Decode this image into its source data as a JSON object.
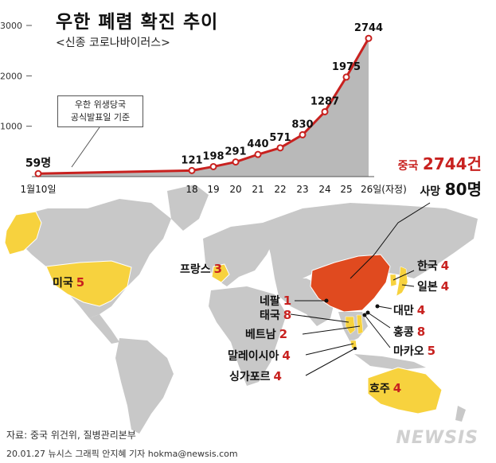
{
  "title": "우한 폐렴 확진 추이",
  "subtitle": "<신종 코로나바이러스>",
  "callout": {
    "line1": "우한 위생당국",
    "line2": "공식발표일 기준"
  },
  "china_total": {
    "label": "중국",
    "value": "2744건"
  },
  "deaths": {
    "label": "사망",
    "value": "80명"
  },
  "countries": [
    {
      "name": "미국",
      "count": "5"
    },
    {
      "name": "프랑스",
      "count": "3"
    },
    {
      "name": "한국",
      "count": "4"
    },
    {
      "name": "일본",
      "count": "4"
    },
    {
      "name": "네팔",
      "count": "1"
    },
    {
      "name": "태국",
      "count": "8"
    },
    {
      "name": "대만",
      "count": "4"
    },
    {
      "name": "베트남",
      "count": "2"
    },
    {
      "name": "홍콩",
      "count": "8"
    },
    {
      "name": "말레이시아",
      "count": "4"
    },
    {
      "name": "마카오",
      "count": "5"
    },
    {
      "name": "싱가포르",
      "count": "4"
    },
    {
      "name": "호주",
      "count": "4"
    }
  ],
  "source": "자료: 중국 위건위, 질병관리본부",
  "credit": "20.01.27 뉴시스 그래픽 안지혜 기자 hokma@newsis.com",
  "logo": "NEWSIS",
  "colors": {
    "accent": "#c8211f",
    "area": "#b9b9b9",
    "china": "#e04a1f",
    "affected": "#f7d23e",
    "land": "#c8c8c8"
  },
  "chart_data": {
    "type": "line",
    "title": "우한 폐렴 확진 추이",
    "subtitle": "<신종 코로나바이러스>",
    "xlabel": "",
    "ylabel": "",
    "ylim": [
      0,
      3000
    ],
    "y_ticks": [
      "1000",
      "2000",
      "3000"
    ],
    "x_tick_labels": [
      "1월10일",
      "18",
      "19",
      "20",
      "21",
      "22",
      "23",
      "24",
      "25",
      "26일(자정)"
    ],
    "x": [
      "1월10일",
      "18",
      "19",
      "20",
      "21",
      "22",
      "23",
      "24",
      "25",
      "26일(자정)"
    ],
    "values": [
      59,
      121,
      198,
      291,
      440,
      571,
      830,
      1287,
      1975,
      2744
    ],
    "point_labels": [
      "59명",
      "121",
      "198",
      "291",
      "440",
      "571",
      "830",
      "1287",
      "1975",
      "2744"
    ],
    "grid": false,
    "area_fill": true
  }
}
